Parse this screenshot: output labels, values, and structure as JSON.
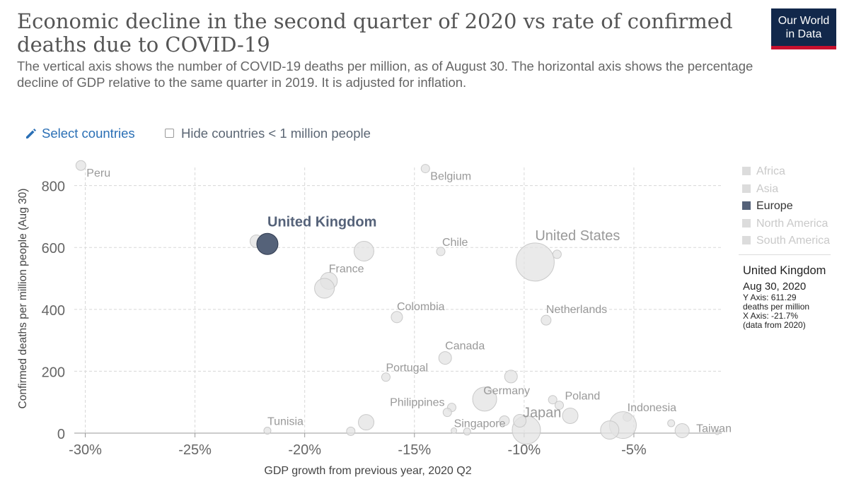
{
  "header": {
    "title": "Economic decline in the second quarter of 2020 vs rate of confirmed deaths due to COVID-19",
    "subtitle": "The vertical axis shows the number of COVID-19 deaths per million, as of August 30. The horizontal axis shows the percentage decline of GDP relative to the same quarter in 2019. It is adjusted for inflation.",
    "logo_line1": "Our World",
    "logo_line2": "in Data"
  },
  "controls": {
    "select_countries": "Select countries",
    "hide_small": "Hide countries < 1 million people",
    "hide_small_checked": false
  },
  "legend": [
    {
      "label": "Africa",
      "active": false
    },
    {
      "label": "Asia",
      "active": false
    },
    {
      "label": "Europe",
      "active": true
    },
    {
      "label": "North America",
      "active": false
    },
    {
      "label": "South America",
      "active": false
    }
  ],
  "tooltip": {
    "name": "United Kingdom",
    "date": "Aug 30, 2020",
    "y_line1": "Y Axis: 611.29",
    "y_line2": "deaths per million",
    "x_line": "X Axis: -21.7%",
    "note": "(data from 2020)"
  },
  "colors": {
    "highlight": "#556279",
    "muted_fill": "#e3e3e3",
    "muted_stroke": "#c9c9c9",
    "label_muted": "#999999",
    "grid": "#d8d8d8"
  },
  "chart_data": {
    "type": "scatter",
    "xlabel": "GDP growth from previous year, 2020 Q2",
    "ylabel": "Confirmed deaths per million people (Aug 30)",
    "xlim": [
      -30.5,
      -1.0
    ],
    "ylim": [
      0,
      870
    ],
    "x_ticks": [
      -30,
      -25,
      -20,
      -15,
      -10,
      -5
    ],
    "x_tick_labels": [
      "-30%",
      "-25%",
      "-20%",
      "-15%",
      "-10%",
      "-5%"
    ],
    "y_ticks": [
      0,
      200,
      400,
      600,
      800
    ],
    "y_tick_labels": [
      "0",
      "200",
      "400",
      "600",
      "800"
    ],
    "grid": true,
    "points": [
      {
        "label": "Peru",
        "x": -30.2,
        "y": 865,
        "size": 7,
        "label_side": "right"
      },
      {
        "label": "Belgium",
        "x": -14.5,
        "y": 855,
        "size": 6,
        "label_side": "right"
      },
      {
        "label": "United Kingdom",
        "x": -21.7,
        "y": 611.29,
        "size": 15,
        "highlight": true,
        "label_side": "up"
      },
      {
        "label": "",
        "x": -22.2,
        "y": 620,
        "size": 9
      },
      {
        "label": "",
        "x": -17.3,
        "y": 588,
        "size": 14
      },
      {
        "label": "Chile",
        "x": -13.8,
        "y": 587,
        "size": 6,
        "label_side": "right"
      },
      {
        "label": "United States",
        "x": -9.5,
        "y": 553,
        "size": 27,
        "label_side": "up-right"
      },
      {
        "label": "",
        "x": -8.5,
        "y": 578,
        "size": 6
      },
      {
        "label": "France",
        "x": -18.9,
        "y": 492,
        "size": 12,
        "label_side": "right"
      },
      {
        "label": "",
        "x": -19.1,
        "y": 468,
        "size": 14
      },
      {
        "label": "Colombia",
        "x": -15.8,
        "y": 375,
        "size": 8,
        "label_side": "right"
      },
      {
        "label": "Netherlands",
        "x": -9.0,
        "y": 365,
        "size": 7,
        "label_side": "right"
      },
      {
        "label": "Canada",
        "x": -13.6,
        "y": 243,
        "size": 9,
        "label_side": "right"
      },
      {
        "label": "Portugal",
        "x": -16.3,
        "y": 181,
        "size": 6,
        "label_side": "right"
      },
      {
        "label": "Germany",
        "x": -10.6,
        "y": 183,
        "size": 9,
        "label_side": "down"
      },
      {
        "label": "",
        "x": -11.8,
        "y": 110,
        "size": 17
      },
      {
        "label": "",
        "x": -8.7,
        "y": 108,
        "size": 6
      },
      {
        "label": "Poland",
        "x": -8.4,
        "y": 90,
        "size": 6,
        "label_side": "right"
      },
      {
        "label": "",
        "x": -7.9,
        "y": 56,
        "size": 11
      },
      {
        "label": "Philippines",
        "x": -13.3,
        "y": 83,
        "size": 6,
        "label_side": "left"
      },
      {
        "label": "",
        "x": -13.5,
        "y": 67,
        "size": 6
      },
      {
        "label": "Indonesia",
        "x": -5.3,
        "y": 52,
        "size": 6,
        "label_side": "right"
      },
      {
        "label": "",
        "x": -5.5,
        "y": 26,
        "size": 19
      },
      {
        "label": "",
        "x": -6.1,
        "y": 10,
        "size": 13
      },
      {
        "label": "",
        "x": -3.3,
        "y": 32,
        "size": 5
      },
      {
        "label": "Tunisia",
        "x": -21.7,
        "y": 8,
        "size": 5,
        "label_side": "right"
      },
      {
        "label": "Singapore",
        "x": -13.2,
        "y": 8,
        "size": 4,
        "label_side": "right"
      },
      {
        "label": "",
        "x": -17.2,
        "y": 35,
        "size": 11
      },
      {
        "label": "",
        "x": -17.9,
        "y": 6,
        "size": 6
      },
      {
        "label": "",
        "x": -10.9,
        "y": 40,
        "size": 7
      },
      {
        "label": "",
        "x": -12.6,
        "y": 5,
        "size": 5
      },
      {
        "label": "Japan",
        "x": -9.9,
        "y": 10,
        "size": 20,
        "label_side": "up-right"
      },
      {
        "label": "",
        "x": -10.2,
        "y": 40,
        "size": 9
      },
      {
        "label": "Taiwan",
        "x": -2.8,
        "y": 8,
        "size": 10,
        "label_side": "right"
      },
      {
        "label": "",
        "x": -1.2,
        "y": 2,
        "size": 3
      }
    ]
  }
}
